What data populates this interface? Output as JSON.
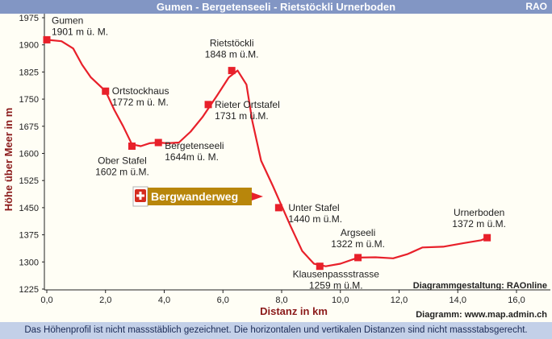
{
  "header": {
    "title": "Gumen - Bergetenseeli - Rietstöckli Urnerboden",
    "brand": "RAO"
  },
  "footer": {
    "note": "Das Höhenprofil ist nicht massstäblich gezeichnet. Die horizontalen und vertikalen Distanzen sind nicht massstabsgerecht."
  },
  "colors": {
    "line": "#e8202a",
    "marker": "#e8202a",
    "header": "#8296c4",
    "footer": "#c3d0e8",
    "axisTitle": "#8b1a1a",
    "signBg": "#b8860b"
  },
  "chart_data": {
    "type": "line",
    "xlabel": "Distanz in km",
    "ylabel": "Höhe über Meer in m",
    "xlim": [
      0,
      16
    ],
    "ylim": [
      1225,
      1975
    ],
    "xticks": [
      "0,0",
      "2,0",
      "4,0",
      "6,0",
      "8,0",
      "10,0",
      "12,0",
      "14,0",
      "16,0"
    ],
    "yticks": [
      "1975",
      "1900",
      "1825",
      "1750",
      "1675",
      "1600",
      "1525",
      "1450",
      "1375",
      "1300",
      "1225"
    ],
    "grid": false,
    "profile": [
      [
        0,
        1914
      ],
      [
        0.5,
        1910
      ],
      [
        0.9,
        1890
      ],
      [
        1.2,
        1845
      ],
      [
        1.5,
        1810
      ],
      [
        2.0,
        1772
      ],
      [
        2.3,
        1720
      ],
      [
        2.6,
        1675
      ],
      [
        2.9,
        1625
      ],
      [
        3.2,
        1620
      ],
      [
        3.5,
        1628
      ],
      [
        3.8,
        1630
      ],
      [
        4.1,
        1628
      ],
      [
        4.5,
        1630
      ],
      [
        4.9,
        1660
      ],
      [
        5.3,
        1700
      ],
      [
        5.8,
        1760
      ],
      [
        6.2,
        1810
      ],
      [
        6.5,
        1829
      ],
      [
        6.8,
        1790
      ],
      [
        7.0,
        1690
      ],
      [
        7.3,
        1580
      ],
      [
        7.7,
        1510
      ],
      [
        8.0,
        1455
      ],
      [
        8.3,
        1400
      ],
      [
        8.7,
        1330
      ],
      [
        9.1,
        1295
      ],
      [
        9.5,
        1288
      ],
      [
        10.0,
        1295
      ],
      [
        10.6,
        1312
      ],
      [
        11.2,
        1313
      ],
      [
        11.8,
        1310
      ],
      [
        12.3,
        1322
      ],
      [
        12.8,
        1340
      ],
      [
        13.5,
        1342
      ],
      [
        14.2,
        1352
      ],
      [
        14.8,
        1360
      ],
      [
        15.0,
        1367
      ]
    ],
    "waypoints": [
      {
        "name": "Gumen",
        "elev": "1901 m ü. M.",
        "x": 0.0,
        "y": 1914
      },
      {
        "name": "Ortstockhaus",
        "elev": "1772 m ü. M.",
        "x": 2.0,
        "y": 1772
      },
      {
        "name": "Ober Stafel",
        "elev": "1602 m ü.M.",
        "x": 2.9,
        "y": 1620
      },
      {
        "name": "Bergetenseeli",
        "elev": "1644m ü. M.",
        "x": 3.8,
        "y": 1630
      },
      {
        "name": "Rieter Ortstafel",
        "elev": "1731 m ü.M.",
        "x": 5.5,
        "y": 1735
      },
      {
        "name": "Rietstöckli",
        "elev": "1848 m ü.M.",
        "x": 6.3,
        "y": 1829
      },
      {
        "name": "Unter Stafel",
        "elev": "1440 m ü.M.",
        "x": 7.9,
        "y": 1450
      },
      {
        "name": "Klausenpassstrasse",
        "elev": "1259 m ü.M.",
        "x": 9.3,
        "y": 1288
      },
      {
        "name": "Argseeli",
        "elev": "1322 m ü.M.",
        "x": 10.6,
        "y": 1312
      },
      {
        "name": "Urnerboden",
        "elev": "1372 m ü.M.",
        "x": 15.0,
        "y": 1367
      }
    ],
    "sign": "Bergwanderweg",
    "credits": [
      "Diagrammgestaltung: RAOnline",
      "Diagramm: www.map.admin.ch"
    ]
  }
}
